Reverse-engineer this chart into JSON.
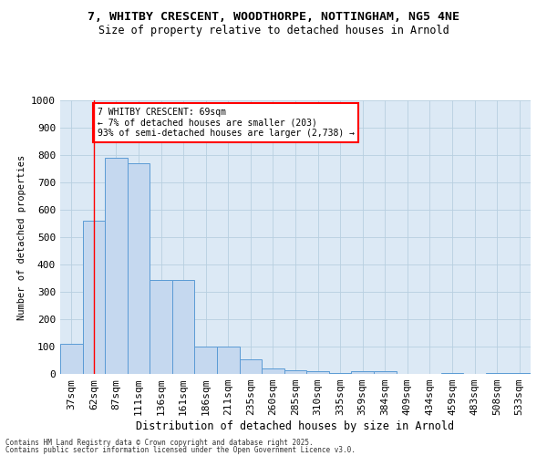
{
  "title_line1": "7, WHITBY CRESCENT, WOODTHORPE, NOTTINGHAM, NG5 4NE",
  "title_line2": "Size of property relative to detached houses in Arnold",
  "xlabel": "Distribution of detached houses by size in Arnold",
  "ylabel": "Number of detached properties",
  "categories": [
    "37sqm",
    "62sqm",
    "87sqm",
    "111sqm",
    "136sqm",
    "161sqm",
    "186sqm",
    "211sqm",
    "235sqm",
    "260sqm",
    "285sqm",
    "310sqm",
    "335sqm",
    "359sqm",
    "384sqm",
    "409sqm",
    "434sqm",
    "459sqm",
    "483sqm",
    "508sqm",
    "533sqm"
  ],
  "values": [
    110,
    560,
    790,
    770,
    345,
    345,
    100,
    100,
    55,
    20,
    15,
    10,
    5,
    10,
    10,
    0,
    0,
    5,
    0,
    5,
    5
  ],
  "bar_color": "#c5d8ef",
  "bar_edge_color": "#5b9bd5",
  "grid_color": "#b8cfe0",
  "bg_color": "#dce9f5",
  "annotation_text": "7 WHITBY CRESCENT: 69sqm\n← 7% of detached houses are smaller (203)\n93% of semi-detached houses are larger (2,738) →",
  "vline_x": 1,
  "ylim": [
    0,
    1000
  ],
  "yticks": [
    0,
    100,
    200,
    300,
    400,
    500,
    600,
    700,
    800,
    900,
    1000
  ],
  "footer_line1": "Contains HM Land Registry data © Crown copyright and database right 2025.",
  "footer_line2": "Contains public sector information licensed under the Open Government Licence v3.0."
}
